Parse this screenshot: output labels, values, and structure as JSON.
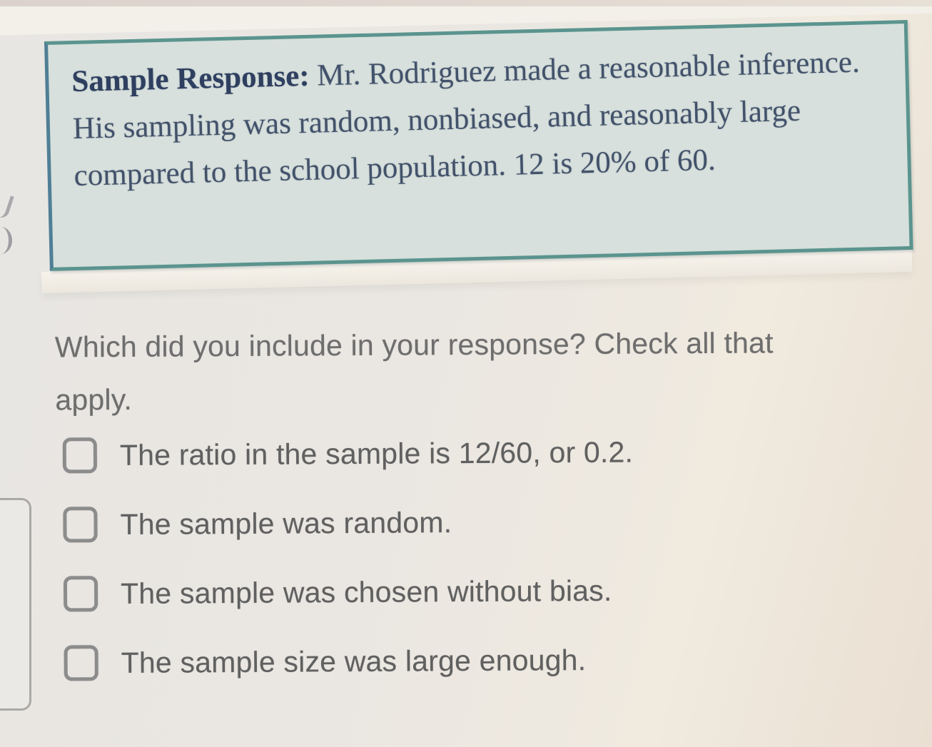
{
  "sample_box": {
    "label": "Sample Response:",
    "body": "Mr. Rodriguez made a reasonable inference. His sampling was random, nonbiased, and reasonably large compared to the school population. 12 is 20% of 60."
  },
  "question": "Which did you include in your response? Check all that apply.",
  "options": [
    {
      "label": "The ratio in the sample is 12/60, or 0.2.",
      "checked": false
    },
    {
      "label": "The sample was random.",
      "checked": false
    },
    {
      "label": "The sample was chosen without bias.",
      "checked": false
    },
    {
      "label": "The sample size was large enough.",
      "checked": false
    }
  ],
  "colors": {
    "page_background": "#e9e6e1",
    "box_background": "#d7e0dc",
    "box_border_teal": "#5b948e",
    "box_border_blue": "#4f7f96",
    "box_text": "#43526b",
    "box_label_text": "#2f3f60",
    "question_text": "#6e6e6e",
    "option_text": "#606060",
    "checkbox_border": "#8c8c8c"
  }
}
